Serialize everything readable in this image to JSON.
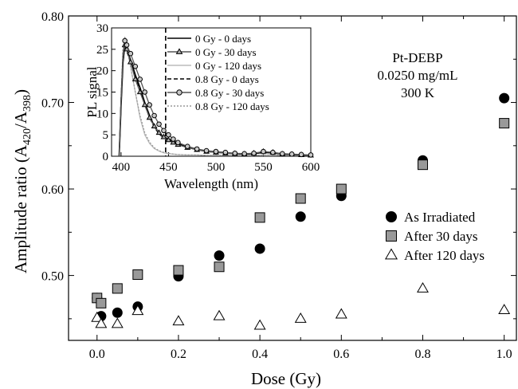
{
  "chart_data": [
    {
      "type": "scatter",
      "xlabel": "Dose (Gy)",
      "ylabel_main": "Amplitude ratio (A",
      "ylabel_sub1": "420",
      "ylabel_mid": "/A",
      "ylabel_sub2": "398",
      "ylabel_end": ")",
      "xlim": [
        -0.07,
        1.03
      ],
      "ylim": [
        0.425,
        0.8
      ],
      "xticks": [
        0.0,
        0.2,
        0.4,
        0.6,
        0.8,
        1.0
      ],
      "xtick_labels": [
        "0.0",
        "0.2",
        "0.4",
        "0.6",
        "0.8",
        "1.0"
      ],
      "yticks": [
        0.5,
        0.6,
        0.7,
        0.8
      ],
      "ytick_labels": [
        "0.50",
        "0.60",
        "0.70",
        "0.80"
      ],
      "annotation": [
        "Pt-DEBP",
        "0.0250 mg/mL",
        "300 K"
      ],
      "legend_position": "right",
      "series": [
        {
          "name": "As Irradiated",
          "marker": "circle",
          "color": "#000000",
          "x": [
            0.0,
            0.01,
            0.05,
            0.1,
            0.2,
            0.3,
            0.4,
            0.5,
            0.6,
            0.8,
            1.0
          ],
          "y": [
            0.474,
            0.453,
            0.457,
            0.464,
            0.499,
            0.523,
            0.531,
            0.568,
            0.592,
            0.633,
            0.705
          ]
        },
        {
          "name": "After 30 days",
          "marker": "square",
          "color": "#999999",
          "x": [
            0.0,
            0.01,
            0.05,
            0.1,
            0.2,
            0.3,
            0.4,
            0.5,
            0.6,
            0.8,
            1.0
          ],
          "y": [
            0.474,
            0.468,
            0.485,
            0.501,
            0.506,
            0.51,
            0.567,
            0.589,
            0.6,
            0.628,
            0.676
          ]
        },
        {
          "name": "After 120 days",
          "marker": "triangle",
          "color": "#ffffff",
          "x": [
            0.0,
            0.01,
            0.05,
            0.1,
            0.2,
            0.3,
            0.4,
            0.5,
            0.6,
            0.8,
            1.0
          ],
          "y": [
            0.451,
            0.444,
            0.444,
            0.459,
            0.447,
            0.453,
            0.442,
            0.45,
            0.455,
            0.485,
            0.46
          ]
        }
      ]
    },
    {
      "type": "line",
      "xlabel": "Wavelength (nm)",
      "ylabel": "PL signal",
      "xlim": [
        390,
        600
      ],
      "ylim": [
        0,
        30
      ],
      "xticks": [
        400,
        450,
        500,
        550,
        600
      ],
      "yticks": [
        0,
        5,
        10,
        15,
        20,
        25,
        30
      ],
      "vertical_line_x": 447,
      "legend_position": "top-right",
      "series": [
        {
          "name": "0 Gy - 0 days",
          "style": "solid",
          "color": "#000000",
          "marker": "none",
          "x": [
            398,
            400,
            402,
            404,
            406,
            410,
            415,
            420,
            425,
            430,
            435,
            440,
            445,
            450,
            455,
            460,
            470,
            480,
            490,
            500,
            510,
            520,
            530,
            540,
            550,
            560,
            570,
            580,
            590,
            600
          ],
          "y": [
            0,
            12,
            22,
            26,
            25,
            22.5,
            19,
            16,
            12.5,
            9.5,
            7,
            5.5,
            4.5,
            4,
            3.5,
            3,
            2.2,
            1.6,
            1.2,
            1,
            0.8,
            0.6,
            0.5,
            0.6,
            0.9,
            0.8,
            0.5,
            0.4,
            0.3,
            0.2
          ]
        },
        {
          "name": "0 Gy - 30 days",
          "style": "solid",
          "color": "#555555",
          "marker": "triangle",
          "x": [
            398,
            400,
            402,
            404,
            406,
            410,
            415,
            420,
            425,
            430,
            435,
            440,
            445,
            450,
            455,
            460,
            470,
            480,
            490,
            500,
            510,
            520,
            530,
            540,
            550,
            560,
            570,
            580,
            590,
            600
          ],
          "y": [
            0,
            13,
            23,
            26,
            25,
            22,
            18,
            15,
            12,
            9,
            7,
            5.5,
            4.5,
            3.8,
            3.2,
            2.7,
            2,
            1.5,
            1.1,
            0.9,
            0.7,
            0.6,
            0.5,
            0.7,
            1.1,
            0.9,
            0.5,
            0.4,
            0.3,
            0.2
          ]
        },
        {
          "name": "0 Gy - 120 days",
          "style": "solid",
          "color": "#bbbbbb",
          "marker": "none",
          "x": [
            398,
            400,
            402,
            404,
            406,
            410,
            415,
            420,
            425,
            430,
            435,
            440,
            445,
            450,
            455,
            460,
            470,
            480,
            490,
            500,
            510,
            520,
            530,
            540,
            550,
            560,
            570,
            580,
            590,
            600
          ],
          "y": [
            0,
            14,
            24,
            27,
            25.5,
            21,
            15,
            9,
            5,
            3,
            1.8,
            1.2,
            0.8,
            0.6,
            0.5,
            0.4,
            0.3,
            0.3,
            0.2,
            0.2,
            0.2,
            0.2,
            0.2,
            0.2,
            0.3,
            0.3,
            0.2,
            0.2,
            0.2,
            0.2
          ]
        },
        {
          "name": "0.8 Gy - 0 days",
          "style": "dashed",
          "color": "#000000",
          "marker": "none",
          "x": [
            398,
            400,
            402,
            404,
            406,
            410,
            415,
            420,
            425,
            430,
            435,
            440,
            445,
            450,
            455,
            460,
            470,
            480,
            490,
            500,
            510,
            520,
            530,
            540,
            550,
            560,
            570,
            580,
            590,
            600
          ],
          "y": [
            0,
            12,
            22,
            25.5,
            24.5,
            22,
            18.5,
            15.5,
            12,
            9,
            6.8,
            5.2,
            4.3,
            3.8,
            3.3,
            2.8,
            2.1,
            1.5,
            1.1,
            0.9,
            0.7,
            0.6,
            0.5,
            0.6,
            0.9,
            0.8,
            0.5,
            0.4,
            0.3,
            0.2
          ]
        },
        {
          "name": "0.8 Gy - 30 days",
          "style": "solid",
          "color": "#555555",
          "marker": "circle",
          "x": [
            398,
            400,
            402,
            404,
            406,
            410,
            415,
            420,
            425,
            430,
            435,
            440,
            445,
            450,
            455,
            460,
            470,
            480,
            490,
            500,
            510,
            520,
            530,
            540,
            550,
            560,
            570,
            580,
            590,
            600
          ],
          "y": [
            0,
            13,
            24,
            27,
            26,
            24,
            21,
            18,
            15,
            12,
            9.5,
            7.5,
            6,
            5,
            4,
            3.2,
            2.3,
            1.7,
            1.3,
            1.1,
            0.9,
            0.7,
            0.6,
            0.7,
            1.1,
            0.9,
            0.6,
            0.5,
            0.4,
            0.3
          ]
        },
        {
          "name": "0.8 Gy - 120 days",
          "style": "dotted",
          "color": "#999999",
          "marker": "none",
          "x": [
            398,
            400,
            402,
            404,
            406,
            410,
            415,
            420,
            425,
            430,
            435,
            440,
            445,
            450,
            455,
            460,
            470,
            480,
            490,
            500,
            510,
            520,
            530,
            540,
            550,
            560,
            570,
            580,
            590,
            600
          ],
          "y": [
            0,
            14,
            25,
            28,
            26,
            21,
            15,
            9.5,
            5.5,
            3.3,
            2,
            1.3,
            0.9,
            0.7,
            0.5,
            0.4,
            0.3,
            0.3,
            0.2,
            0.2,
            0.2,
            0.2,
            0.2,
            0.2,
            0.3,
            0.3,
            0.2,
            0.2,
            0.2,
            0.2
          ]
        }
      ]
    }
  ]
}
